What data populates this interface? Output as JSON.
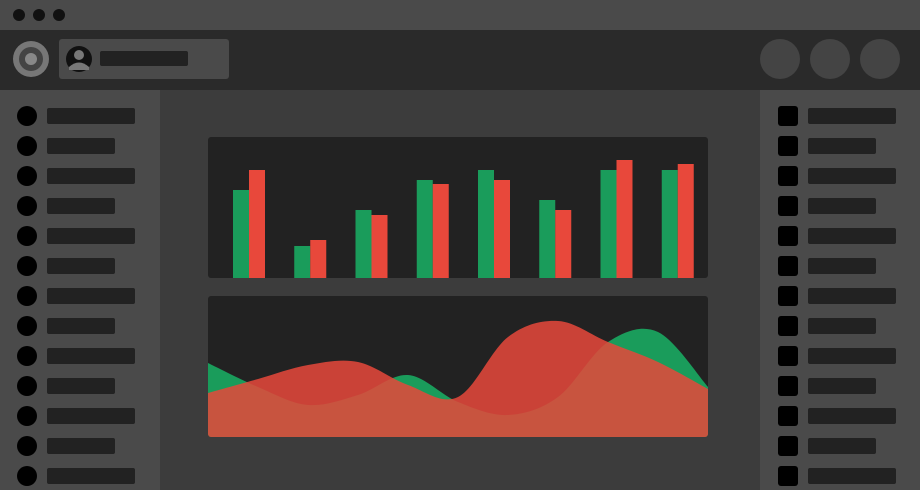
{
  "chart_data": [
    {
      "type": "bar",
      "categories": [
        null,
        null,
        null,
        null,
        null,
        null,
        null,
        null
      ],
      "series": [
        {
          "color": "#1a9c5b",
          "values": [
            88,
            32,
            68,
            98,
            108,
            78,
            108,
            108
          ]
        },
        {
          "color": "#e8483b",
          "values": [
            108,
            38,
            63,
            94,
            98,
            68,
            118,
            114
          ]
        }
      ],
      "ylim": [
        0,
        141
      ]
    },
    {
      "type": "area",
      "categories": [
        null,
        null,
        null,
        null,
        null,
        null,
        null,
        null,
        null,
        null,
        null
      ],
      "series": [
        {
          "color": "#1a9c5b",
          "values": [
            74,
            50,
            32,
            42,
            62,
            35,
            22,
            40,
            95,
            105,
            50
          ]
        },
        {
          "color": "#e8483b",
          "values": [
            44,
            58,
            72,
            75,
            52,
            40,
            100,
            116,
            95,
            75,
            48
          ]
        }
      ],
      "ylim": [
        0,
        141
      ]
    }
  ]
}
